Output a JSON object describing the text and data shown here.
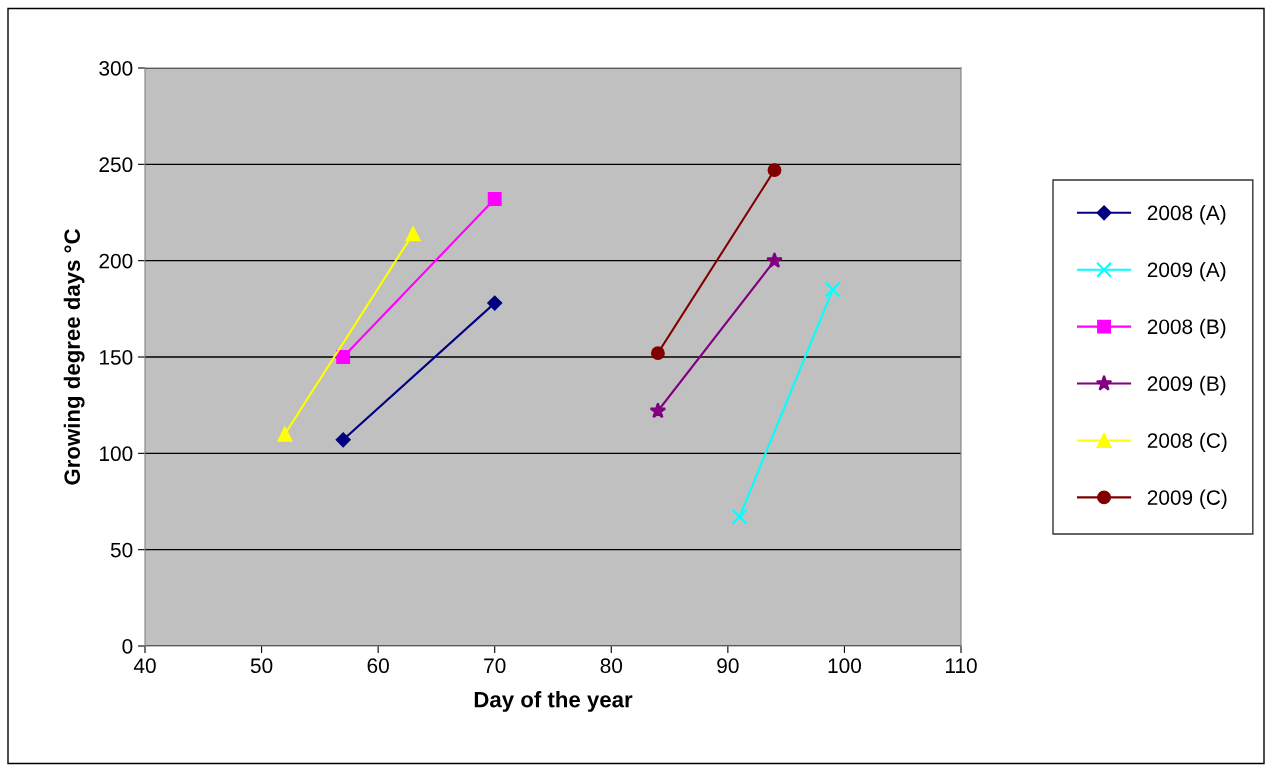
{
  "chart_data": {
    "type": "line",
    "xlabel": "Day of the year",
    "ylabel": "Growing degree days °C",
    "xlim": [
      40,
      110
    ],
    "xticks": [
      40,
      50,
      60,
      70,
      80,
      90,
      100,
      110
    ],
    "ylim": [
      0,
      300
    ],
    "yticks": [
      0,
      50,
      100,
      150,
      200,
      250,
      300
    ],
    "grid": "y",
    "legend": "right",
    "line_style": "solid",
    "series": [
      {
        "name": "2008 (A)",
        "color": "#000080",
        "marker": "diamond",
        "x": [
          57,
          70
        ],
        "values": [
          107,
          178
        ]
      },
      {
        "name": "2009 (A)",
        "color": "#00ffff",
        "marker": "cross",
        "x": [
          91,
          99
        ],
        "values": [
          67,
          185
        ]
      },
      {
        "name": "2008 (B)",
        "color": "#ff00ff",
        "marker": "square",
        "x": [
          57,
          70
        ],
        "values": [
          150,
          232
        ]
      },
      {
        "name": "2009 (B)",
        "color": "#800080",
        "marker": "star",
        "x": [
          84,
          94
        ],
        "values": [
          122,
          200
        ]
      },
      {
        "name": "2008 (C)",
        "color": "#ffff00",
        "marker": "triangle",
        "x": [
          52,
          63
        ],
        "values": [
          110,
          214
        ]
      },
      {
        "name": "2009 (C)",
        "color": "#800000",
        "marker": "circle",
        "x": [
          84,
          94
        ],
        "values": [
          152,
          247
        ]
      }
    ]
  }
}
